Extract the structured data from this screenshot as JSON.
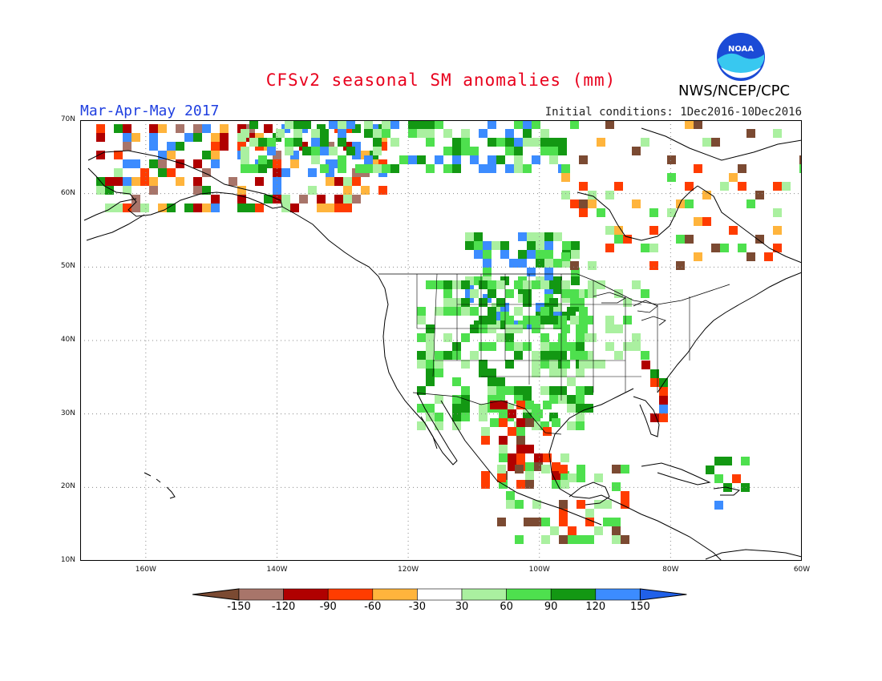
{
  "title": "CFSv2 seasonal SM anomalies (mm)",
  "season": "Mar-Apr-May 2017",
  "initial_conditions": "Initial conditions: 1Dec2016-10Dec2016",
  "agency": "NWS/NCEP/CPC",
  "logo_text": "NOAA",
  "map": {
    "lat_ticks": [
      "70N",
      "60N",
      "50N",
      "40N",
      "30N",
      "20N",
      "10N"
    ],
    "lon_ticks": [
      "160W",
      "140W",
      "120W",
      "100W",
      "80W",
      "60W"
    ],
    "lat_range": [
      10,
      70
    ],
    "lon_range": [
      -170,
      -60
    ]
  },
  "legend": {
    "labels": [
      "-150",
      "-120",
      "-90",
      "-60",
      "-30",
      "30",
      "60",
      "90",
      "120",
      "150"
    ],
    "colors": [
      "#7b4a32",
      "#a8756a",
      "#b00000",
      "#ff3c00",
      "#ffb43c",
      "#ffffff",
      "#aaf0a0",
      "#4ee04e",
      "#139813",
      "#3c8cff",
      "#2060e8"
    ]
  }
}
